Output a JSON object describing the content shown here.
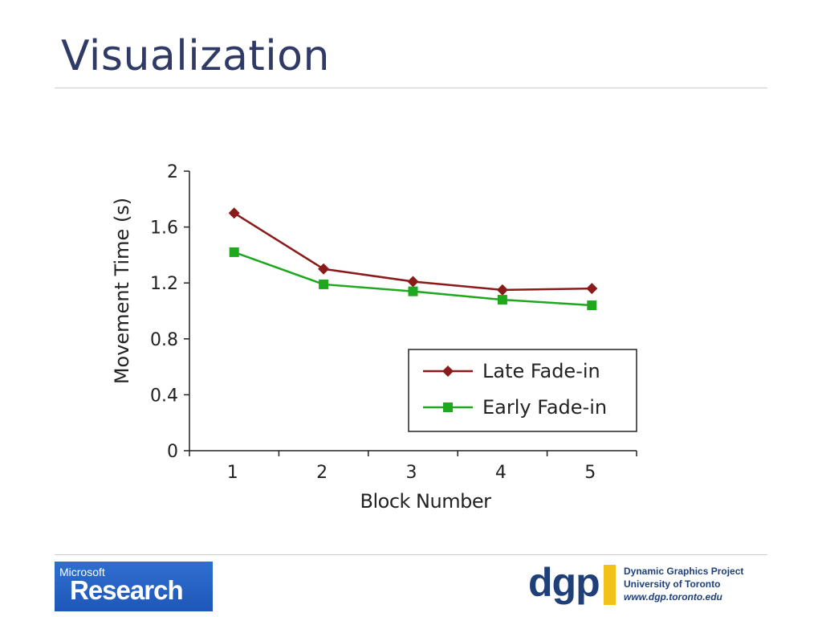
{
  "slide": {
    "title": "Visualization"
  },
  "footer": {
    "ms_logo_top": "Microsoft",
    "ms_logo_main": "Research",
    "dgp_mark": "dgp",
    "dgp_line1": "Dynamic Graphics Project",
    "dgp_line2": "University of Toronto",
    "dgp_line3": "www.dgp.toronto.edu"
  },
  "colors": {
    "title": "#2f3a66",
    "late": "#8b1a1a",
    "early": "#1ea81e"
  },
  "chart_data": {
    "type": "line",
    "x": [
      1,
      2,
      3,
      4,
      5
    ],
    "xticks": [
      "1",
      "2",
      "3",
      "4",
      "5"
    ],
    "yticks": [
      "0",
      "0.4",
      "0.8",
      "1.2",
      "1.6",
      "2"
    ],
    "xlabel": "Block Number",
    "ylabel": "Movement Time (s)",
    "ylim": [
      0,
      2
    ],
    "xlim": [
      0.5,
      5.5
    ],
    "grid": false,
    "legend_position": "lower-right",
    "series": [
      {
        "name": "Late Fade-in",
        "values": [
          1.7,
          1.3,
          1.21,
          1.15,
          1.16
        ],
        "color": "#8b1a1a",
        "marker": "diamond"
      },
      {
        "name": "Early Fade-in",
        "values": [
          1.42,
          1.19,
          1.14,
          1.08,
          1.04
        ],
        "color": "#1ea81e",
        "marker": "square"
      }
    ]
  }
}
